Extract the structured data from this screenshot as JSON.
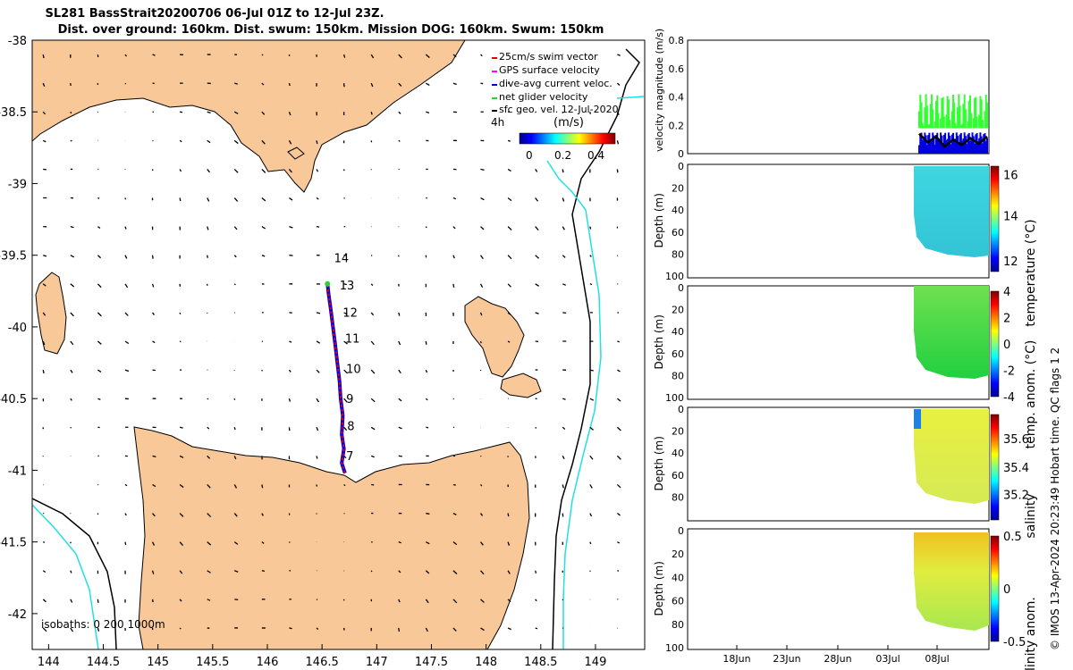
{
  "title_line1": "SL281 BassStrait20200706 06-Jul 01Z to 12-Jul 23Z.",
  "title_line2": "Dist. over ground: 160km. Dist. swum: 150km. Mission DOG: 160km. Swum: 150km",
  "credit": "© IMOS 13-Apr-2024 20:23:49 Hobart time. QC flags 1  2",
  "colors": {
    "land": "#f8c898",
    "isobath200": "#000000",
    "isobath1000": "#22e0e0",
    "track_red": "#e00000",
    "track_blue": "#0000e0",
    "track_green": "#30d030"
  },
  "chart_data": [
    {
      "type": "map",
      "name": "track-map",
      "lon_ticks": [
        "144",
        "144.5",
        "145",
        "145.5",
        "146",
        "146.5",
        "147",
        "147.5",
        "148",
        "148.5",
        "149"
      ],
      "lat_ticks": [
        "-38",
        "-38.5",
        "-39",
        "-39.5",
        "-40",
        "-40.5",
        "-41",
        "-41.5",
        "-42"
      ],
      "lon_range": [
        143.85,
        149.45
      ],
      "lat_range": [
        -38,
        -42.25
      ],
      "legend": [
        "25cm/s swim vector",
        "GPS surface velocity",
        "dive-avg current veloc.",
        "net glider velocity",
        "sfc geo. vel. 12-Jul-2020"
      ],
      "legend_4h": "4h",
      "colorbar_label": "(m/s)",
      "colorbar_ticks": [
        "0",
        "0.2",
        "0.4"
      ],
      "isobath_label": "isobaths: 0   200  1000m",
      "day_labels": [
        {
          "day": "7",
          "lon": 146.72,
          "lat": -40.93
        },
        {
          "day": "8",
          "lon": 146.73,
          "lat": -40.72
        },
        {
          "day": "9",
          "lon": 146.72,
          "lat": -40.53
        },
        {
          "day": "10",
          "lon": 146.72,
          "lat": -40.32
        },
        {
          "day": "11",
          "lon": 146.71,
          "lat": -40.11
        },
        {
          "day": "12",
          "lon": 146.69,
          "lat": -39.93
        },
        {
          "day": "13",
          "lon": 146.66,
          "lat": -39.74
        },
        {
          "day": "14",
          "lon": 146.61,
          "lat": -39.55
        }
      ],
      "track": [
        {
          "lon": 146.71,
          "lat": -41.02
        },
        {
          "lon": 146.68,
          "lat": -40.95
        },
        {
          "lon": 146.7,
          "lat": -40.85
        },
        {
          "lon": 146.68,
          "lat": -40.75
        },
        {
          "lon": 146.69,
          "lat": -40.62
        },
        {
          "lon": 146.67,
          "lat": -40.5
        },
        {
          "lon": 146.66,
          "lat": -40.38
        },
        {
          "lon": 146.64,
          "lat": -40.25
        },
        {
          "lon": 146.62,
          "lat": -40.12
        },
        {
          "lon": 146.6,
          "lat": -40.0
        },
        {
          "lon": 146.58,
          "lat": -39.88
        },
        {
          "lon": 146.56,
          "lat": -39.77
        },
        {
          "lon": 146.55,
          "lat": -39.7
        }
      ]
    },
    {
      "type": "line",
      "name": "velocity-panel",
      "ylabel": "velocity magnitude (m/s)",
      "ylim": [
        0,
        0.8
      ],
      "yticks": [
        "0",
        "0.2",
        "0.4",
        "0.6",
        "0.8"
      ],
      "series": [
        {
          "name": "net glider velocity",
          "color": "#30ff30",
          "range": [
            0.18,
            0.42
          ]
        },
        {
          "name": "dive-avg current veloc.",
          "color": "#0000e0",
          "range": [
            0.0,
            0.15
          ]
        },
        {
          "name": "sfc geo. vel.",
          "color": "#000000",
          "values": [
            0.14,
            0.08,
            0.12,
            0.05,
            0.1,
            0.06,
            0.11,
            0.07,
            0.12
          ]
        }
      ]
    },
    {
      "type": "heatmap",
      "name": "temperature-panel",
      "ylabel": "Depth (m)",
      "yticks": [
        "0",
        "20",
        "40",
        "60",
        "80",
        "100"
      ],
      "colorbar_label": "temperature (°C)",
      "colorbar_ticks": [
        "16",
        "14",
        "12"
      ],
      "clim": [
        11.5,
        16.8
      ]
    },
    {
      "type": "heatmap",
      "name": "temp-anomaly-panel",
      "ylabel": "Depth (m)",
      "yticks": [
        "0",
        "20",
        "40",
        "60",
        "80",
        "100"
      ],
      "colorbar_label": "temp. anom. (°C)",
      "colorbar_ticks": [
        "4",
        "2",
        "0",
        "-2",
        "-4"
      ],
      "clim": [
        -4,
        4
      ]
    },
    {
      "type": "heatmap",
      "name": "salinity-panel",
      "ylabel": "Depth (m)",
      "yticks": [
        "0",
        "20",
        "40",
        "60",
        "80"
      ],
      "colorbar_label": "salinity",
      "colorbar_ticks": [
        "35.6",
        "35.4",
        "35.2"
      ],
      "clim": [
        35.1,
        35.7
      ]
    },
    {
      "type": "heatmap",
      "name": "salinity-anomaly-panel",
      "ylabel": "Depth (m)",
      "yticks": [
        "0",
        "20",
        "40",
        "60",
        "80",
        "100"
      ],
      "colorbar_label": "salinity anom.",
      "colorbar_ticks": [
        "0.5",
        "0",
        "-0.5"
      ],
      "clim": [
        -0.5,
        0.5
      ],
      "xticks": [
        "18Jun",
        "23Jun",
        "28Jun",
        "03Jul",
        "08Jul"
      ]
    }
  ]
}
